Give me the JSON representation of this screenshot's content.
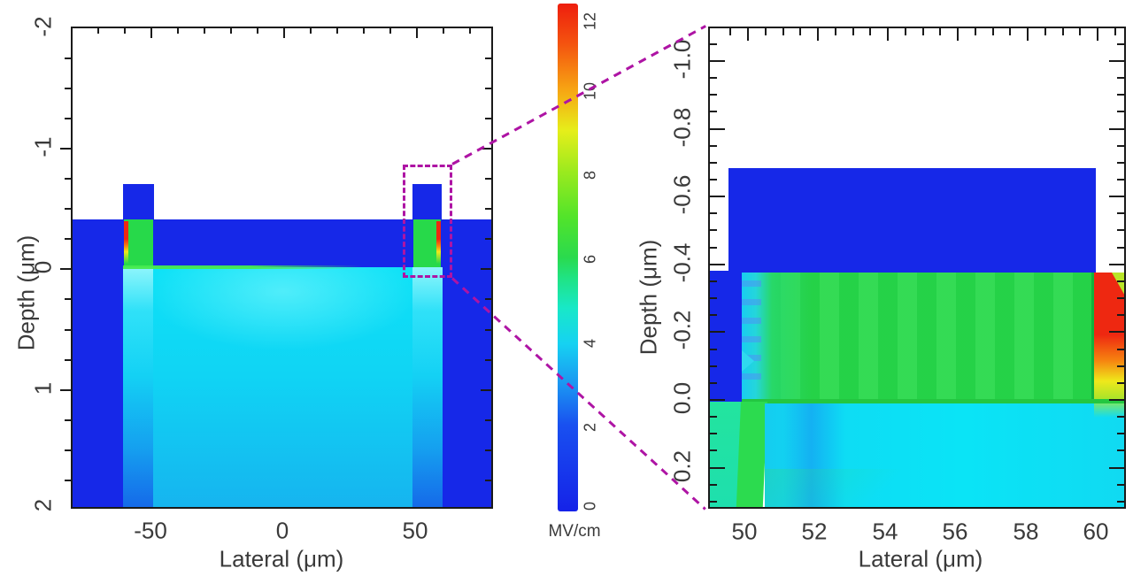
{
  "palette": {
    "bulk_blue": "#1628e8",
    "cyan": "#10d8f4",
    "teal": "#1fe0a6",
    "green": "#2bd850",
    "yellow": "#efe81b",
    "orange": "#f68310",
    "red": "#ee2811",
    "zoom_link_magenta": "#ae14a4",
    "axis_black": "#1a1a1a"
  },
  "colorbar": {
    "unit": "MV/cm",
    "min": 0,
    "max": 12,
    "ticks": [
      "0",
      "2",
      "4",
      "6",
      "8",
      "10",
      "12"
    ]
  },
  "left_plot": {
    "xlabel": "Lateral (μm)",
    "ylabel": "Depth (μm)",
    "x_ticks": [
      "-50",
      "0",
      "50"
    ],
    "y_ticks": [
      "-2",
      "-1",
      "0",
      "1",
      "2"
    ]
  },
  "right_plot": {
    "xlabel": "Lateral (μm)",
    "ylabel": "Depth (μm)",
    "x_ticks": [
      "50",
      "52",
      "54",
      "56",
      "58",
      "60"
    ],
    "y_ticks": [
      "-1.0",
      "-0.8",
      "-0.6",
      "-0.4",
      "-0.2",
      "0.0",
      "0.2"
    ]
  },
  "chart_data": [
    {
      "type": "heatmap",
      "panel": "left-full-device-cross-section",
      "xlabel": "Lateral (μm)",
      "ylabel": "Depth (μm)",
      "x_range": [
        -80,
        80
      ],
      "y_range": [
        -2,
        2
      ],
      "y_axis_top_value": -2,
      "x_tick_labels": [
        -50,
        0,
        50
      ],
      "y_tick_labels": [
        -2,
        -1,
        0,
        1,
        2
      ],
      "value_unit": "MV/cm",
      "regions": [
        {
          "name": "ambient-above-surface",
          "x": [
            -80,
            80
          ],
          "depth": [
            -2,
            -0.4
          ],
          "value_MV_cm": null
        },
        {
          "name": "raised-electrode-left",
          "x": [
            -60,
            -48.5
          ],
          "depth": [
            -0.69,
            -0.4
          ],
          "value_MV_cm": 1
        },
        {
          "name": "raised-electrode-right",
          "x": [
            49,
            60
          ],
          "depth": [
            -0.69,
            -0.4
          ],
          "value_MV_cm": 1
        },
        {
          "name": "surface-layer-blue",
          "x": [
            -80,
            80
          ],
          "depth": [
            -0.4,
            0
          ],
          "value_MV_cm": 1
        },
        {
          "name": "high-field-channel-left",
          "x": [
            -60,
            -49
          ],
          "depth": [
            -0.4,
            0
          ],
          "value_MV_cm": 6.5
        },
        {
          "name": "field-peak-left-outer-edge",
          "x": [
            -60,
            -59.3
          ],
          "depth": [
            -0.38,
            -0.2
          ],
          "value_MV_cm": 11.5
        },
        {
          "name": "high-field-channel-right",
          "x": [
            49,
            60
          ],
          "depth": [
            -0.4,
            0
          ],
          "value_MV_cm": 6.5
        },
        {
          "name": "field-peak-right-outer-edge",
          "x": [
            59.3,
            60
          ],
          "depth": [
            -0.38,
            -0.2
          ],
          "value_MV_cm": 11.5
        },
        {
          "name": "drift-region-cyan",
          "x": [
            -60,
            60
          ],
          "depth": [
            0,
            2
          ],
          "value_MV_cm": 3.5
        },
        {
          "name": "left-edge-column-blue",
          "x": [
            -80,
            -60
          ],
          "depth": [
            0,
            2
          ],
          "value_MV_cm": 1
        },
        {
          "name": "right-edge-column-blue",
          "x": [
            60,
            80
          ],
          "depth": [
            0,
            2
          ],
          "value_MV_cm": 1
        }
      ],
      "zoom_box": {
        "x": [
          45.3,
          64.0
        ],
        "depth": [
          -0.85,
          0.09
        ]
      }
    },
    {
      "type": "heatmap",
      "panel": "right-zoomed-view",
      "xlabel": "Lateral (μm)",
      "ylabel": "Depth (μm)",
      "x_range": [
        48.9,
        60.8
      ],
      "y_range": [
        -1.1,
        0.33
      ],
      "y_axis_top_value": -1.1,
      "x_tick_labels": [
        50,
        52,
        54,
        56,
        58,
        60
      ],
      "y_tick_labels": [
        -1.0,
        -0.8,
        -0.6,
        -0.4,
        -0.2,
        0.0,
        0.2
      ],
      "value_unit": "MV/cm",
      "regions": [
        {
          "name": "ambient-above-electrode",
          "x": [
            48.9,
            60.8
          ],
          "depth": [
            -1.1,
            -0.67
          ],
          "value_MV_cm": null
        },
        {
          "name": "electrode-block-blue",
          "x": [
            49.5,
            60.0
          ],
          "depth": [
            -0.67,
            -0.37
          ],
          "value_MV_cm": 1
        },
        {
          "name": "left-column-blue",
          "x": [
            48.9,
            50.0
          ],
          "depth": [
            -0.37,
            0.0
          ],
          "value_MV_cm": 1
        },
        {
          "name": "high-field-region-green",
          "x": [
            50.0,
            60.0
          ],
          "depth": [
            -0.37,
            0.0
          ],
          "value_MV_cm": 6.5
        },
        {
          "name": "field-hotspot-red",
          "x": [
            60.0,
            60.8
          ],
          "depth": [
            -0.37,
            -0.05
          ],
          "value_MV_cm": 11.5
        },
        {
          "name": "below-junction-teal-left",
          "x": [
            48.9,
            50.0
          ],
          "depth": [
            0.0,
            0.33
          ],
          "value_MV_cm": 4.7
        },
        {
          "name": "below-junction-green-band",
          "x": [
            50.0,
            50.8
          ],
          "depth": [
            0.0,
            0.33
          ],
          "value_MV_cm": 6
        },
        {
          "name": "below-junction-cyan",
          "x": [
            50.8,
            60.8
          ],
          "depth": [
            0.0,
            0.33
          ],
          "value_MV_cm": 3.8
        }
      ]
    },
    {
      "type": "colorbar",
      "unit": "MV/cm",
      "range": [
        0,
        12
      ],
      "tick_labels": [
        0,
        2,
        4,
        6,
        8,
        10,
        12
      ],
      "colormap": "rainbow: blue(0) - cyan(4) - green(6) - yellow(9) - orange(10) - red(12)"
    }
  ]
}
